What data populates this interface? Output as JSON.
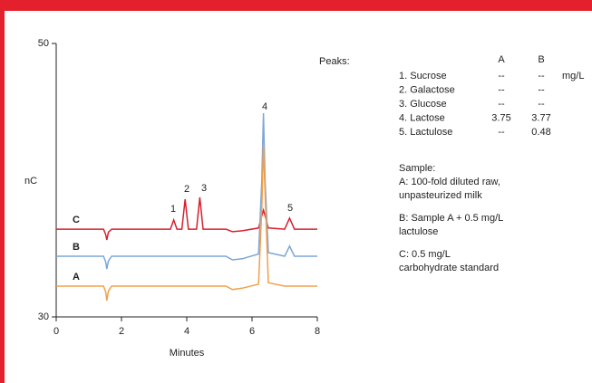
{
  "chart_data": {
    "type": "line",
    "x_label": "Minutes",
    "y_label": "nC",
    "xlim": [
      0,
      8
    ],
    "xticks": [
      0,
      2,
      4,
      6,
      8
    ],
    "ylim": [
      30,
      50
    ],
    "yticks": [
      30,
      50
    ],
    "x": [
      0,
      1.45,
      1.52,
      1.55,
      1.6,
      1.7,
      3.5,
      3.6,
      3.7,
      3.85,
      3.95,
      4.05,
      4.3,
      4.4,
      4.5,
      5.2,
      5.4,
      5.7,
      6.2,
      6.3,
      6.35,
      6.4,
      6.5,
      7.0,
      7.15,
      7.3,
      8
    ],
    "series": [
      {
        "name": "C",
        "color": "#d7202f",
        "values": [
          36.42,
          36.42,
          36.0,
          35.63,
          36.2,
          36.42,
          36.42,
          37.09,
          36.42,
          36.42,
          38.6,
          36.42,
          36.42,
          38.74,
          36.42,
          36.42,
          36.23,
          36.3,
          36.5,
          37.4,
          37.81,
          37.4,
          36.5,
          36.42,
          37.22,
          36.42,
          36.42
        ]
      },
      {
        "name": "B",
        "color": "#7ea6d6",
        "values": [
          34.44,
          34.44,
          34.0,
          33.5,
          34.1,
          34.44,
          34.44,
          34.44,
          34.44,
          34.44,
          34.44,
          34.44,
          34.44,
          34.44,
          34.44,
          34.44,
          34.17,
          34.25,
          34.6,
          40.0,
          44.9,
          40.0,
          34.7,
          34.44,
          35.17,
          34.44,
          34.44
        ]
      },
      {
        "name": "A",
        "color": "#f0a04b",
        "values": [
          32.25,
          32.25,
          31.8,
          31.19,
          31.9,
          32.25,
          32.25,
          32.25,
          32.25,
          32.25,
          32.25,
          32.25,
          32.25,
          32.25,
          32.25,
          32.25,
          32.0,
          32.1,
          32.4,
          38.0,
          42.58,
          39.0,
          32.5,
          32.25,
          32.25,
          32.25,
          32.25
        ]
      }
    ],
    "peak_labels": [
      "1",
      "2",
      "3",
      "4",
      "5"
    ],
    "peaks_table": {
      "title": "Peaks:",
      "columns": [
        "A",
        "B"
      ],
      "unit": "mg/L",
      "rows": [
        [
          "1. Sucrose",
          "--",
          "--"
        ],
        [
          "2. Galactose",
          "--",
          "--"
        ],
        [
          "3. Glucose",
          "--",
          "--"
        ],
        [
          "4. Lactose",
          "3.75",
          "3.77"
        ],
        [
          "5. Lactulose",
          "--",
          "0.48"
        ]
      ]
    },
    "sample": {
      "title": "Sample:",
      "items": [
        [
          "A: 100-fold diluted raw,",
          "unpasteurized milk"
        ],
        [
          "B: Sample A + 0.5 mg/L",
          "lactulose"
        ],
        [
          "C: 0.5 mg/L",
          "carbohydrate standard"
        ]
      ]
    }
  }
}
